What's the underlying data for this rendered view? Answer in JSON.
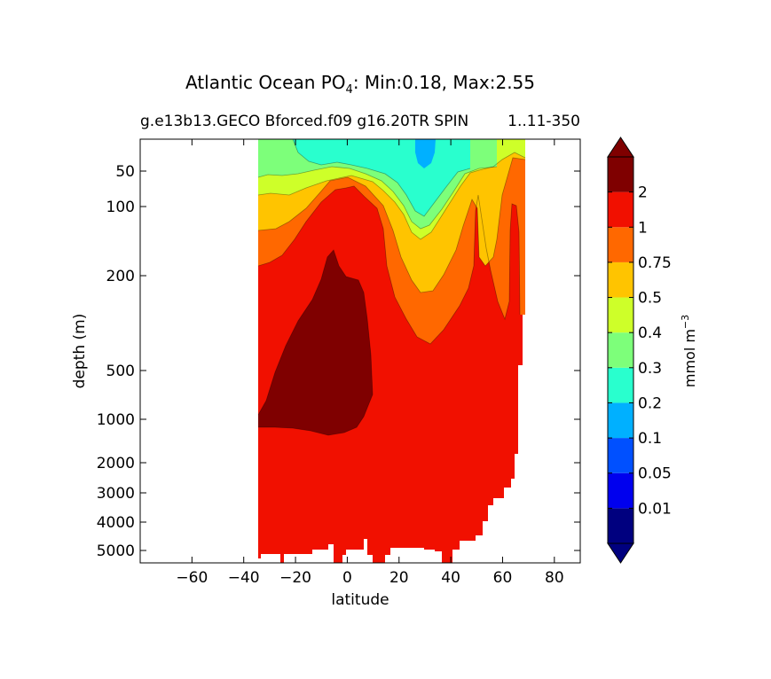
{
  "chart_data": {
    "type": "contour",
    "title_main": "Atlantic Ocean PO",
    "title_sub": "4",
    "title_rest": ": Min:0.18, Max:2.55",
    "subtitle_left": "g.e13b13.GECO Bforced.f09 g16.20TR SPIN",
    "subtitle_right": "1..11-350",
    "xlabel": "latitude",
    "ylabel": "depth (m)",
    "xlim": [
      -80,
      90
    ],
    "ylim_depth": [
      10,
      6000
    ],
    "y_scale": "custom-stretched",
    "x_ticks": [
      {
        "value": -60,
        "label": "−60"
      },
      {
        "value": -40,
        "label": "−40"
      },
      {
        "value": -20,
        "label": "−20"
      },
      {
        "value": 0,
        "label": "0"
      },
      {
        "value": 20,
        "label": "20"
      },
      {
        "value": 40,
        "label": "40"
      },
      {
        "value": 60,
        "label": "60"
      },
      {
        "value": 80,
        "label": "80"
      }
    ],
    "y_ticks": [
      {
        "value": 50,
        "label": "50"
      },
      {
        "value": 100,
        "label": "100"
      },
      {
        "value": 200,
        "label": "200"
      },
      {
        "value": 500,
        "label": "500"
      },
      {
        "value": 1000,
        "label": "1000"
      },
      {
        "value": 2000,
        "label": "2000"
      },
      {
        "value": 3000,
        "label": "3000"
      },
      {
        "value": 4000,
        "label": "4000"
      },
      {
        "value": 5000,
        "label": "5000"
      }
    ],
    "colorbar": {
      "label": "mmol m",
      "label_exponent": "−3",
      "levels": [
        "0.01",
        "0.05",
        "0.1",
        "0.2",
        "0.3",
        "0.4",
        "0.5",
        "0.75",
        "1",
        "2"
      ],
      "colors": [
        "#00007f",
        "#0000ee",
        "#0050ff",
        "#00b0ff",
        "#29ffce",
        "#7dff7a",
        "#ceff29",
        "#ffc400",
        "#ff6800",
        "#f11000",
        "#7f0000"
      ],
      "extend": "both"
    },
    "regions": [
      {
        "name": "land-mask",
        "color": "#ffffff"
      },
      {
        "name": "high-po4-core",
        "level": ">2",
        "color": "#7f0000"
      },
      {
        "name": "deep-ocean",
        "level": "1-2",
        "color": "#f11000"
      },
      {
        "name": "thermocline",
        "level": "0.75-1",
        "color": "#ff6800"
      },
      {
        "name": "upper-layer",
        "level": "0.5-0.75",
        "color": "#ffc400"
      },
      {
        "name": "band-0.4-0.5",
        "level": "0.4-0.5",
        "color": "#ceff29"
      },
      {
        "name": "band-0.3-0.4",
        "level": "0.3-0.4",
        "color": "#7dff7a"
      },
      {
        "name": "surface-0.2-0.3",
        "level": "0.2-0.3",
        "color": "#29ffce"
      },
      {
        "name": "surface-min-0.1-0.2",
        "level": "0.1-0.2",
        "color": "#00b0ff"
      }
    ]
  }
}
